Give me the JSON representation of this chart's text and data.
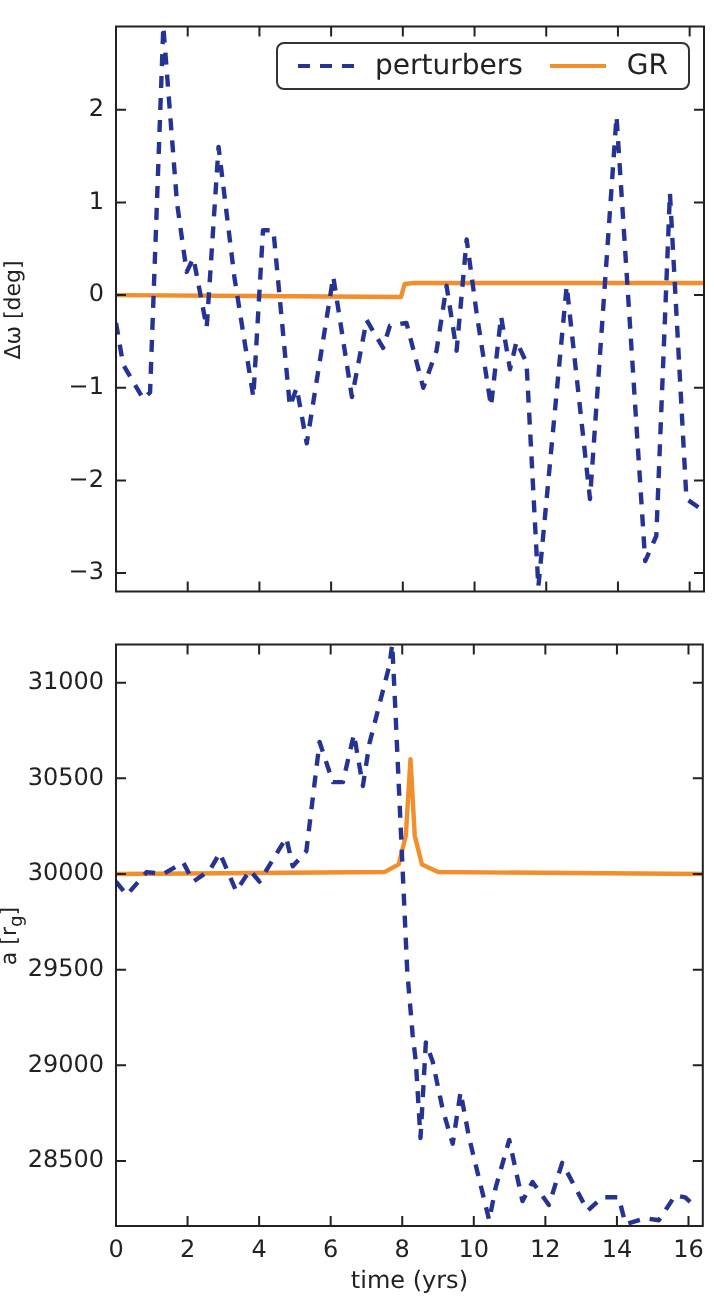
{
  "chart_data": [
    {
      "type": "line",
      "ylabel": "Δω [deg]",
      "xlim": [
        0,
        16.4
      ],
      "xticks": [
        0,
        2,
        4,
        6,
        8,
        10,
        12,
        14,
        16
      ],
      "ylim": [
        -3.2,
        2.9
      ],
      "yticks": [
        -3,
        -2,
        -1,
        0,
        1,
        2
      ],
      "tick_labels": "y",
      "legend": "top right",
      "marker": "none",
      "series": [
        {
          "name": "perturbers",
          "color": "#253494",
          "line_style": "dashed",
          "x": [
            0,
            0.2,
            0.76,
            0.95,
            1.32,
            1.7,
            1.97,
            2.16,
            2.53,
            2.86,
            3.3,
            3.83,
            4.1,
            4.39,
            4.85,
            5.04,
            5.32,
            6.06,
            6.58,
            6.99,
            7.45,
            7.64,
            8.1,
            8.57,
            8.94,
            9.22,
            9.5,
            9.78,
            10.06,
            10.46,
            10.74,
            10.99,
            11.17,
            11.45,
            11.78,
            12.57,
            13.22,
            13.96,
            14.76,
            15.07,
            15.45,
            15.91,
            16.28
          ],
          "values": [
            -0.3,
            -0.75,
            -1.12,
            -1.05,
            2.9,
            1.0,
            0.25,
            0.4,
            -0.35,
            1.6,
            0.2,
            -1.1,
            0.7,
            0.7,
            -1.2,
            -1.0,
            -1.6,
            0.2,
            -1.1,
            -0.27,
            -0.57,
            -0.33,
            -0.3,
            -1.0,
            -0.6,
            0.1,
            -0.6,
            0.6,
            -0.2,
            -1.2,
            -0.23,
            -0.8,
            -0.5,
            -0.73,
            -3.15,
            0.1,
            -2.2,
            1.93,
            -2.87,
            -2.6,
            1.1,
            -2.2,
            -2.3
          ]
        },
        {
          "name": "GR",
          "color": "#f28e2b",
          "line_style": "solid",
          "x": [
            0,
            7.95,
            8.05,
            8.3,
            16.4
          ],
          "values": [
            0,
            -0.02,
            0.12,
            0.13,
            0.13
          ]
        }
      ]
    },
    {
      "type": "line",
      "xlabel": "time (yrs)",
      "ylabel": "a [r$_{g}$]",
      "xlim": [
        0,
        16.4
      ],
      "xticks": [
        0,
        2,
        4,
        6,
        8,
        10,
        12,
        14,
        16
      ],
      "ylim": [
        28160,
        31200
      ],
      "yticks": [
        28500,
        29000,
        29500,
        30000,
        30500,
        31000
      ],
      "marker": "none",
      "series": [
        {
          "color": "#253494",
          "line_style": "dashed",
          "x": [
            0,
            0.3,
            0.86,
            1.32,
            1.88,
            2.16,
            2.62,
            2.9,
            3.36,
            3.74,
            4.01,
            4.76,
            4.94,
            5.32,
            5.69,
            6.06,
            6.34,
            6.65,
            6.9,
            7.08,
            7.64,
            7.72,
            7.8,
            8.14,
            8.29,
            8.38,
            8.51,
            8.66,
            8.85,
            9.13,
            9.41,
            9.63,
            9.87,
            10.43,
            10.61,
            10.99,
            11.36,
            11.64,
            12.1,
            12.47,
            13.18,
            13.59,
            14.05,
            14.24,
            14.8,
            15.17,
            15.63,
            15.91,
            16.19
          ],
          "values": [
            29960,
            29890,
            30010,
            30000,
            30060,
            29960,
            30020,
            30110,
            29910,
            30020,
            29960,
            30190,
            30040,
            30120,
            30690,
            30480,
            30480,
            30730,
            30460,
            30680,
            31090,
            31200,
            30890,
            29490,
            29160,
            29020,
            28620,
            29120,
            29020,
            28770,
            28590,
            28860,
            28620,
            28190,
            28360,
            28610,
            28290,
            28390,
            28270,
            28490,
            28240,
            28310,
            28310,
            28170,
            28200,
            28190,
            28320,
            28310,
            28260
          ]
        },
        {
          "color": "#f28e2b",
          "line_style": "solid",
          "x": [
            0,
            7.5,
            7.9,
            8.1,
            8.23,
            8.35,
            8.55,
            9,
            16.4
          ],
          "values": [
            30000,
            30010,
            30050,
            30200,
            30600,
            30200,
            30050,
            30010,
            30000
          ]
        }
      ]
    }
  ]
}
